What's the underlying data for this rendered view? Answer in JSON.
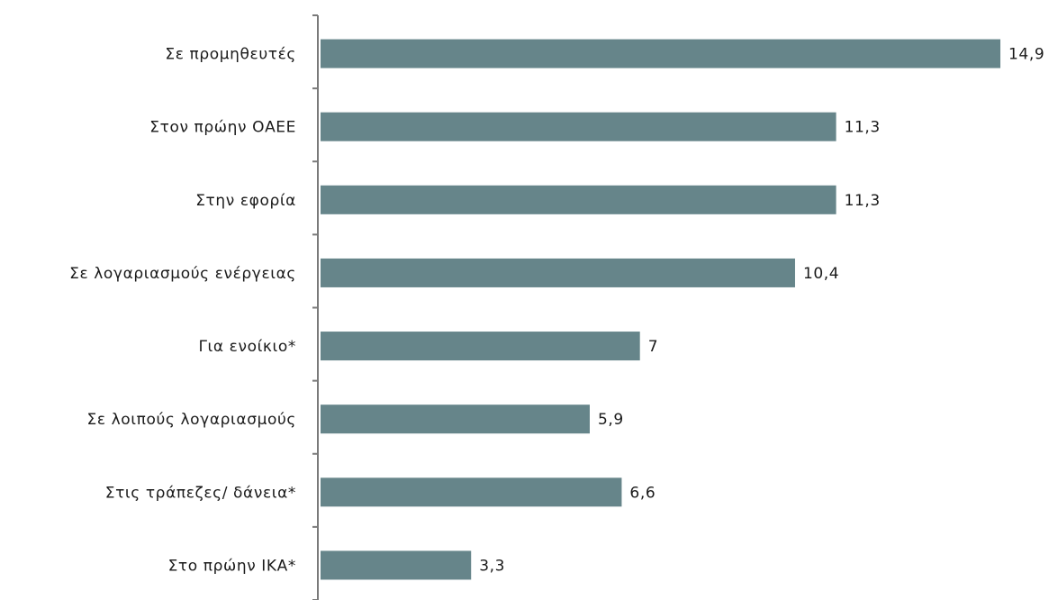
{
  "chart_data": {
    "type": "bar",
    "orientation": "horizontal",
    "categories": [
      "Σε προμηθευτές",
      "Στον πρώην ΟΑΕΕ",
      "Στην εφορία",
      "Σε λογαριασμούς ενέργειας",
      "Για ενοίκιο*",
      "Σε λοιπούς λογαριασμούς",
      "Στις τράπεζες/ δάνεια*",
      "Στο πρώην ΙΚΑ*"
    ],
    "values": [
      14.9,
      11.3,
      11.3,
      10.4,
      7,
      5.9,
      6.6,
      3.3
    ],
    "value_labels": [
      "14,9",
      "11,3",
      "11,3",
      "10,4",
      "7",
      "5,9",
      "6,6",
      "3,3"
    ],
    "title": "",
    "xlabel": "",
    "ylabel": "",
    "xlim": [
      0,
      15
    ],
    "grid": false,
    "legend": "none",
    "bar_color": "#66858a"
  }
}
